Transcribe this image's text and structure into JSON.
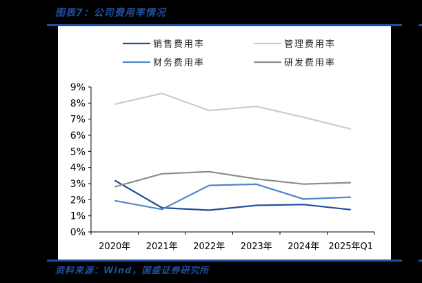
{
  "header": {
    "title": "图表7：公司费用率情况"
  },
  "footer": {
    "source": "资料来源：Wind，国盛证券研究所"
  },
  "colors": {
    "accent": "#1f4e9c",
    "sales": "#1f4e9c",
    "management": "#cccccc",
    "finance": "#4f86c6",
    "rnd": "#8c8c8c"
  },
  "chart_data": {
    "type": "line",
    "title": "公司费用率情况",
    "xlabel": "",
    "ylabel": "",
    "categories": [
      "2020年",
      "2021年",
      "2022年",
      "2023年",
      "2024年",
      "2025年Q1"
    ],
    "yticks": [
      "0%",
      "1%",
      "2%",
      "3%",
      "4%",
      "5%",
      "6%",
      "7%",
      "8%",
      "9%"
    ],
    "ylim": [
      0,
      9
    ],
    "grid": false,
    "legend_position": "top",
    "series": [
      {
        "name": "销售费用率",
        "color": "#1f4e9c",
        "values": [
          3.2,
          1.5,
          1.35,
          1.65,
          1.7,
          1.38
        ]
      },
      {
        "name": "管理费用率",
        "color": "#cccccc",
        "values": [
          7.93,
          8.6,
          7.54,
          7.79,
          7.12,
          6.39
        ]
      },
      {
        "name": "财务费用率",
        "color": "#4f86c6",
        "values": [
          1.94,
          1.4,
          2.89,
          2.96,
          2.04,
          2.16
        ]
      },
      {
        "name": "研发费用率",
        "color": "#8c8c8c",
        "values": [
          2.8,
          3.61,
          3.74,
          3.29,
          2.97,
          3.06
        ]
      }
    ]
  }
}
